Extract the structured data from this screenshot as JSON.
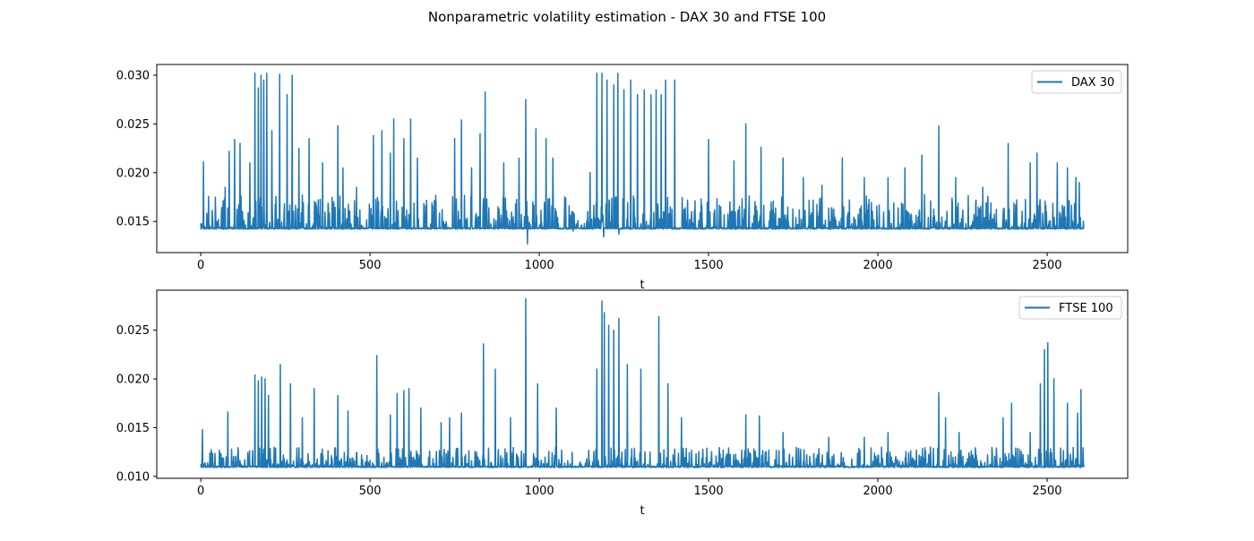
{
  "figure": {
    "title": "Nonparametric volatility estimation - DAX 30 and FTSE 100"
  },
  "chart_data": [
    {
      "type": "line",
      "title": "",
      "xlabel": "t",
      "ylabel": "",
      "xlim": [
        -130,
        2738
      ],
      "ylim": [
        0.0118,
        0.0311
      ],
      "xticks": [
        0,
        500,
        1000,
        1500,
        2000,
        2500
      ],
      "yticks": [
        0.015,
        0.02,
        0.025,
        0.03
      ],
      "ytick_labels": [
        "0.015",
        "0.020",
        "0.025",
        "0.030"
      ],
      "grid": false,
      "legend_position": "upper right",
      "color": "#1f77b4",
      "x": [
        0,
        2609
      ],
      "series": [
        {
          "name": "DAX 30",
          "baseline": 0.0142,
          "noise_spikes": 0.0034,
          "peaks": [
            [
              8,
              0.0211
            ],
            [
              72,
              0.0185
            ],
            [
              84,
              0.0222
            ],
            [
              100,
              0.0234
            ],
            [
              116,
              0.023
            ],
            [
              145,
              0.021
            ],
            [
              160,
              0.0302
            ],
            [
              170,
              0.0287
            ],
            [
              178,
              0.03
            ],
            [
              186,
              0.0295
            ],
            [
              195,
              0.0302
            ],
            [
              210,
              0.0243
            ],
            [
              233,
              0.0301
            ],
            [
              255,
              0.028
            ],
            [
              270,
              0.03
            ],
            [
              290,
              0.0225
            ],
            [
              320,
              0.0235
            ],
            [
              360,
              0.021
            ],
            [
              405,
              0.0248
            ],
            [
              420,
              0.0205
            ],
            [
              460,
              0.0185
            ],
            [
              510,
              0.0238
            ],
            [
              535,
              0.0243
            ],
            [
              560,
              0.022
            ],
            [
              570,
              0.0255
            ],
            [
              600,
              0.0235
            ],
            [
              620,
              0.0255
            ],
            [
              640,
              0.0215
            ],
            [
              750,
              0.0235
            ],
            [
              770,
              0.0254
            ],
            [
              800,
              0.0205
            ],
            [
              825,
              0.024
            ],
            [
              840,
              0.0283
            ],
            [
              895,
              0.021
            ],
            [
              940,
              0.0215
            ],
            [
              960,
              0.0275
            ],
            [
              965,
              0.029
            ],
            [
              990,
              0.0245
            ],
            [
              1020,
              0.0235
            ],
            [
              1040,
              0.0215
            ],
            [
              1100,
              0.0195
            ],
            [
              1150,
              0.02
            ],
            [
              1170,
              0.0302
            ],
            [
              1185,
              0.0302
            ],
            [
              1200,
              0.0295
            ],
            [
              1220,
              0.029
            ],
            [
              1232,
              0.0302
            ],
            [
              1250,
              0.0285
            ],
            [
              1270,
              0.0295
            ],
            [
              1290,
              0.028
            ],
            [
              1310,
              0.0285
            ],
            [
              1330,
              0.028
            ],
            [
              1345,
              0.0285
            ],
            [
              1360,
              0.028
            ],
            [
              1373,
              0.0295
            ],
            [
              1400,
              0.0295
            ],
            [
              1500,
              0.0234
            ],
            [
              1575,
              0.0212
            ],
            [
              1610,
              0.025
            ],
            [
              1655,
              0.0226
            ],
            [
              1720,
              0.0215
            ],
            [
              1780,
              0.0195
            ],
            [
              1835,
              0.0187
            ],
            [
              1895,
              0.0215
            ],
            [
              1960,
              0.0195
            ],
            [
              2030,
              0.0195
            ],
            [
              2080,
              0.0205
            ],
            [
              2130,
              0.0218
            ],
            [
              2180,
              0.0248
            ],
            [
              2230,
              0.0195
            ],
            [
              2310,
              0.0185
            ],
            [
              2385,
              0.023
            ],
            [
              2450,
              0.021
            ],
            [
              2470,
              0.022
            ],
            [
              2530,
              0.021
            ],
            [
              2560,
              0.0205
            ],
            [
              2585,
              0.0195
            ],
            [
              2595,
              0.019
            ]
          ],
          "dips": [
            [
              965,
              0.0127
            ],
            [
              1190,
              0.0134
            ],
            [
              1235,
              0.0137
            ],
            [
              1100,
              0.014
            ]
          ]
        }
      ]
    },
    {
      "type": "line",
      "title": "",
      "xlabel": "t",
      "ylabel": "",
      "xlim": [
        -130,
        2738
      ],
      "ylim": [
        0.0098,
        0.0291
      ],
      "xticks": [
        0,
        500,
        1000,
        1500,
        2000,
        2500
      ],
      "yticks": [
        0.01,
        0.015,
        0.02,
        0.025
      ],
      "ytick_labels": [
        "0.010",
        "0.015",
        "0.020",
        "0.025"
      ],
      "grid": false,
      "legend_position": "upper right",
      "color": "#1f77b4",
      "x": [
        0,
        2609
      ],
      "series": [
        {
          "name": "FTSE 100",
          "baseline": 0.0109,
          "noise_spikes": 0.002,
          "peaks": [
            [
              5,
              0.0148
            ],
            [
              80,
              0.0166
            ],
            [
              160,
              0.0204
            ],
            [
              170,
              0.0198
            ],
            [
              180,
              0.0202
            ],
            [
              190,
              0.02
            ],
            [
              200,
              0.0183
            ],
            [
              235,
              0.0215
            ],
            [
              265,
              0.0195
            ],
            [
              300,
              0.016
            ],
            [
              335,
              0.019
            ],
            [
              405,
              0.0183
            ],
            [
              435,
              0.0167
            ],
            [
              520,
              0.0224
            ],
            [
              560,
              0.0163
            ],
            [
              580,
              0.0185
            ],
            [
              600,
              0.0188
            ],
            [
              615,
              0.019
            ],
            [
              650,
              0.017
            ],
            [
              710,
              0.0155
            ],
            [
              735,
              0.016
            ],
            [
              770,
              0.0165
            ],
            [
              835,
              0.0236
            ],
            [
              870,
              0.021
            ],
            [
              915,
              0.016
            ],
            [
              960,
              0.0282
            ],
            [
              995,
              0.0195
            ],
            [
              1050,
              0.017
            ],
            [
              1170,
              0.021
            ],
            [
              1185,
              0.028
            ],
            [
              1192,
              0.0268
            ],
            [
              1205,
              0.0255
            ],
            [
              1220,
              0.025
            ],
            [
              1235,
              0.0262
            ],
            [
              1260,
              0.0215
            ],
            [
              1300,
              0.021
            ],
            [
              1353,
              0.0264
            ],
            [
              1380,
              0.0195
            ],
            [
              1420,
              0.016
            ],
            [
              1610,
              0.0163
            ],
            [
              1650,
              0.0162
            ],
            [
              1720,
              0.0145
            ],
            [
              1855,
              0.014
            ],
            [
              1960,
              0.014
            ],
            [
              2030,
              0.0145
            ],
            [
              2180,
              0.0186
            ],
            [
              2200,
              0.016
            ],
            [
              2240,
              0.0145
            ],
            [
              2370,
              0.016
            ],
            [
              2395,
              0.0175
            ],
            [
              2450,
              0.0145
            ],
            [
              2480,
              0.0195
            ],
            [
              2492,
              0.023
            ],
            [
              2502,
              0.0237
            ],
            [
              2520,
              0.02
            ],
            [
              2560,
              0.0175
            ],
            [
              2590,
              0.0165
            ],
            [
              2600,
              0.0189
            ]
          ],
          "dips": []
        }
      ]
    }
  ]
}
